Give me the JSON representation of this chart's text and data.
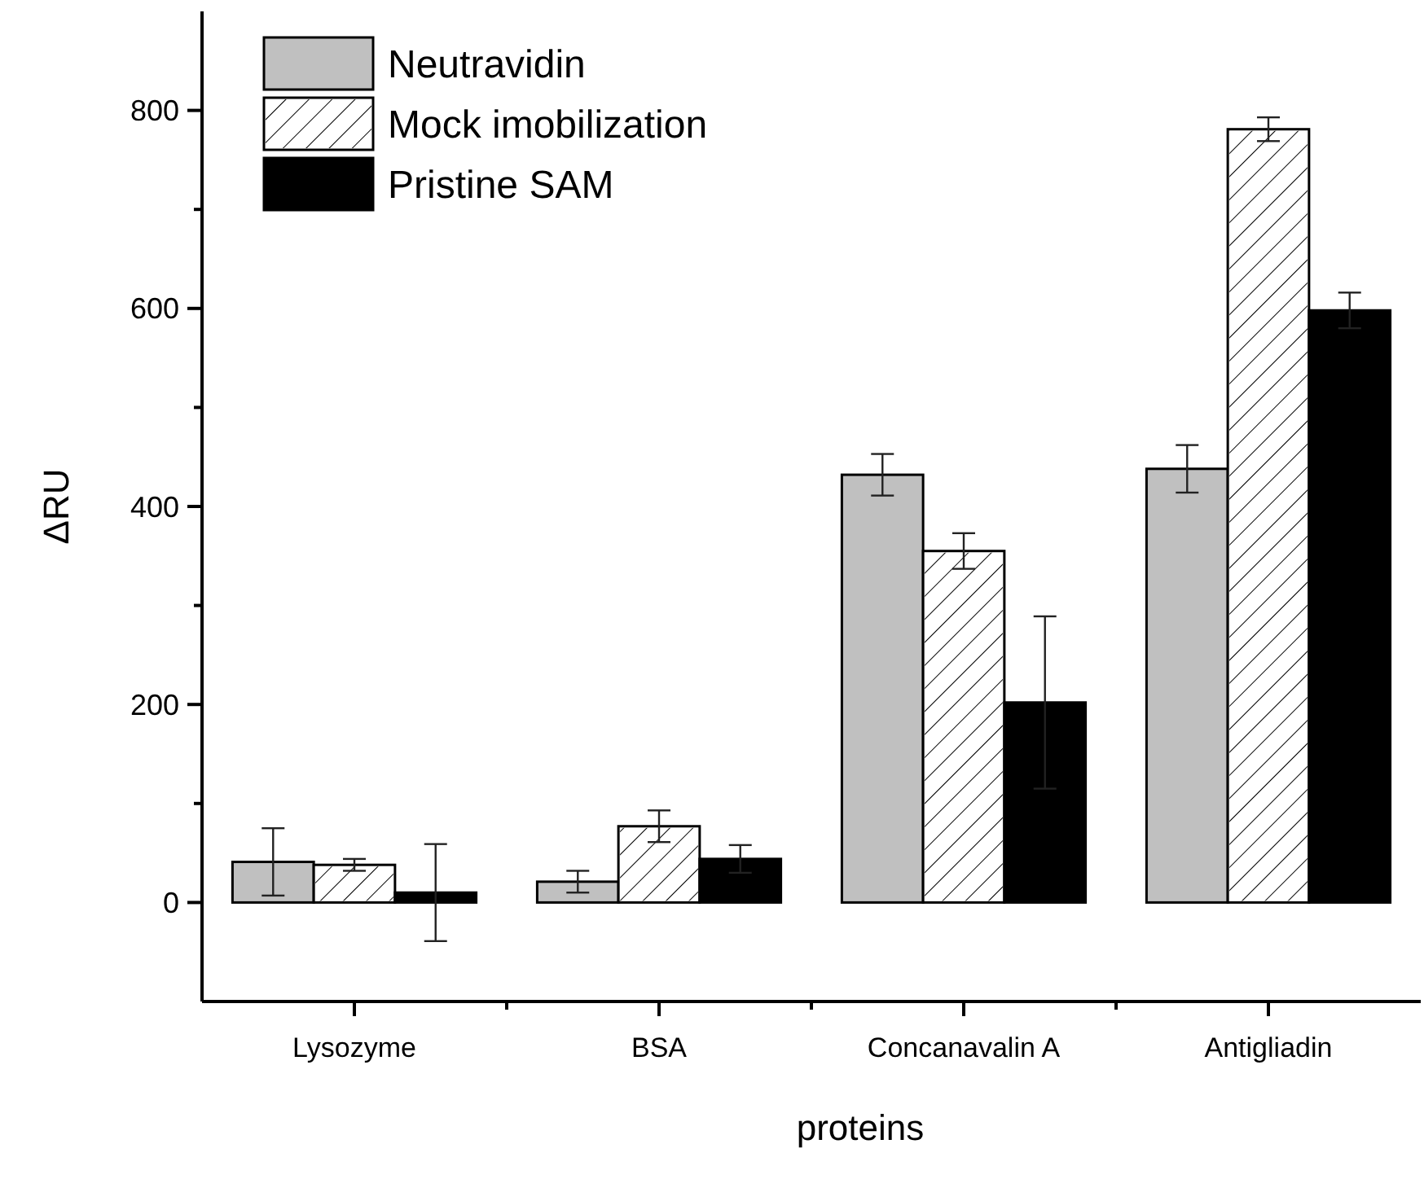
{
  "chart_data": {
    "type": "bar",
    "xlabel": "proteins",
    "ylabel": "ΔRU",
    "categories": [
      "Lysozyme",
      "BSA",
      "Concanavalin A",
      "Antigliadin"
    ],
    "series": [
      {
        "name": "Neutravidin",
        "color": "#c0c0c0",
        "values": [
          41,
          21,
          432,
          438
        ],
        "errors": [
          34,
          11,
          21,
          24
        ]
      },
      {
        "name": "Mock imobilization",
        "color": "#ffffff",
        "values": [
          38,
          77,
          355,
          781
        ],
        "errors": [
          6,
          16,
          18,
          12
        ]
      },
      {
        "name": "Pristine SAM",
        "color": "#000000",
        "values": [
          10,
          44,
          202,
          598
        ],
        "errors": [
          49,
          14,
          87,
          18
        ]
      }
    ],
    "ylim": [
      -100,
      900
    ],
    "yticks": [
      0,
      {
        "value": 100,
        "label": null
      },
      200,
      {
        "value": 300,
        "label": null
      },
      400,
      {
        "value": 500,
        "label": null
      },
      600,
      {
        "value": 700,
        "label": null
      },
      800
    ],
    "grid": false,
    "legend": "top left"
  }
}
